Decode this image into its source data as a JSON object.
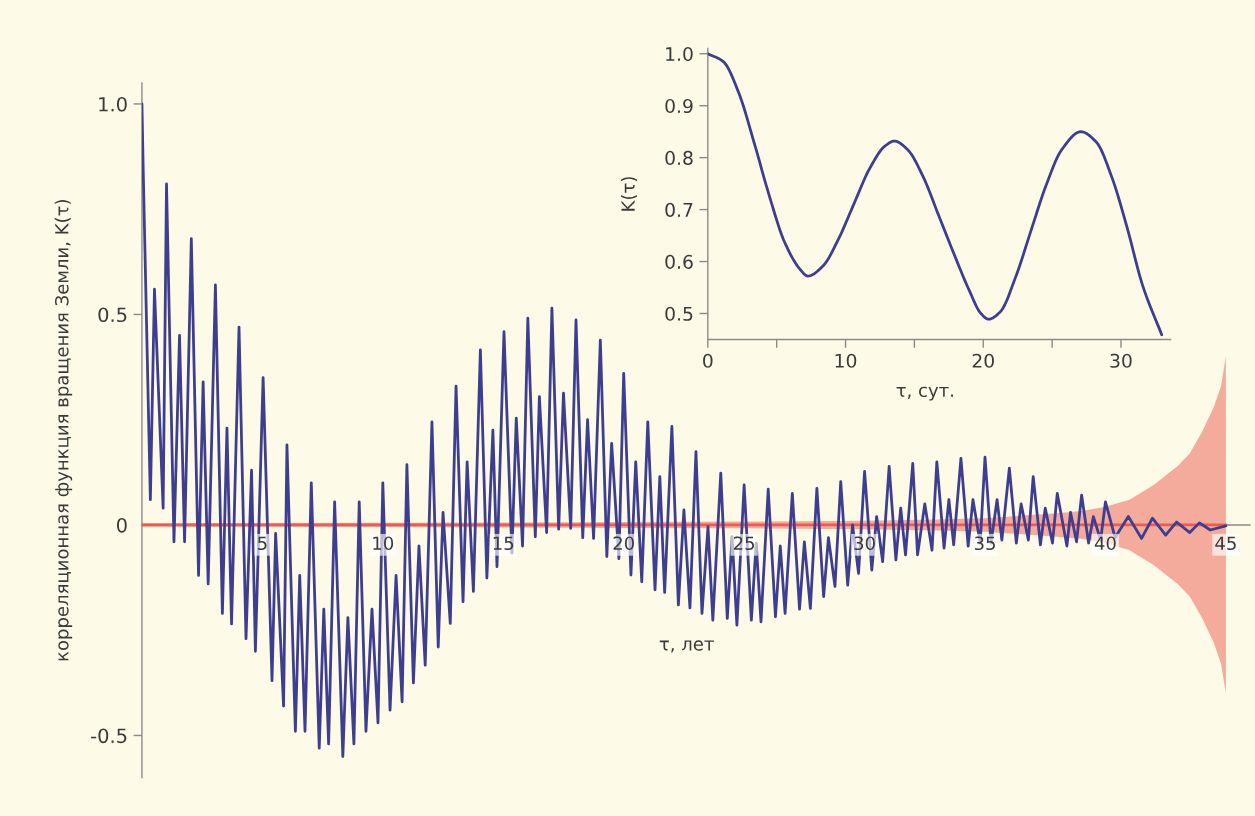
{
  "chart_data": [
    {
      "type": "line",
      "xlabel": "τ, лет",
      "ylabel": "корреляционная функция вращения Земли, K(τ)",
      "xlim": [
        0,
        46
      ],
      "ylim": [
        -0.6,
        1.05
      ],
      "xticks": [
        5,
        10,
        15,
        20,
        25,
        30,
        35,
        40,
        45
      ],
      "yticks": [
        -0.5,
        0,
        0.5,
        {
          "value": 1,
          "label": "1.0"
        }
      ],
      "grid": false,
      "series": [
        {
          "color": "#ec5c50",
          "x": [
            0,
            10,
            20,
            25,
            30,
            33,
            35,
            37,
            38,
            39,
            40,
            41,
            42,
            43,
            43.5,
            44,
            44.5,
            44.8,
            45
          ],
          "values": [
            0,
            0,
            0,
            0,
            0,
            0,
            0,
            0,
            0,
            0,
            0,
            0,
            0,
            0,
            0,
            0,
            0,
            0,
            0
          ],
          "lower": [
            -0.004,
            -0.005,
            -0.007,
            -0.008,
            -0.01,
            -0.013,
            -0.016,
            -0.024,
            -0.028,
            -0.033,
            -0.043,
            -0.06,
            -0.095,
            -0.14,
            -0.17,
            -0.22,
            -0.28,
            -0.33,
            -0.4
          ],
          "upper": [
            0.004,
            0.005,
            0.007,
            0.008,
            0.01,
            0.013,
            0.016,
            0.024,
            0.028,
            0.033,
            0.043,
            0.06,
            0.095,
            0.14,
            0.17,
            0.22,
            0.28,
            0.33,
            0.4
          ]
        },
        {
          "color": "#3d3d91",
          "x": [
            0,
            0.05,
            0.35,
            0.52,
            0.88,
            1.02,
            1.33,
            1.56,
            1.77,
            2.05,
            2.35,
            2.54,
            2.75,
            3.05,
            3.34,
            3.53,
            3.72,
            4.03,
            4.32,
            4.55,
            4.71,
            5.03,
            5.4,
            5.55,
            5.88,
            6.02,
            6.37,
            6.55,
            6.77,
            7.03,
            7.36,
            7.55,
            7.75,
            8.0,
            8.34,
            8.55,
            8.8,
            9.02,
            9.3,
            9.55,
            9.8,
            10.0,
            10.3,
            10.55,
            10.8,
            11.0,
            11.27,
            11.5,
            11.76,
            12.04,
            12.3,
            12.5,
            12.8,
            13.04,
            13.33,
            13.5,
            13.76,
            14.05,
            14.32,
            14.57,
            14.74,
            15.03,
            15.36,
            15.54,
            15.8,
            16.02,
            16.33,
            16.5,
            16.8,
            17.02,
            17.3,
            17.5,
            17.8,
            18.02,
            18.3,
            18.5,
            18.75,
            19.03,
            19.3,
            19.5,
            19.8,
            20.0,
            20.3,
            20.5,
            20.75,
            21.0,
            21.3,
            21.5,
            21.7,
            22.0,
            22.27,
            22.5,
            22.75,
            23.0,
            23.25,
            23.5,
            23.7,
            24.03,
            24.3,
            24.5,
            24.7,
            25.0,
            25.3,
            25.5,
            25.7,
            26.0,
            26.3,
            26.5,
            26.7,
            27.0,
            27.3,
            27.5,
            27.75,
            28.02,
            28.3,
            28.5,
            28.77,
            29.01,
            29.3,
            29.5,
            29.75,
            30.0,
            30.3,
            30.5,
            30.75,
            31.02,
            31.3,
            31.5,
            31.7,
            32.0,
            32.2,
            32.5,
            32.8,
            33.0,
            33.3,
            33.5,
            33.7,
            34.0,
            34.3,
            34.5,
            34.8,
            35.0,
            35.25,
            35.5,
            35.7,
            36.01,
            36.3,
            36.5,
            36.8,
            37.0,
            37.3,
            37.5,
            37.8,
            38.0,
            38.4,
            38.55,
            38.8,
            39.01,
            39.3,
            39.5,
            39.8,
            40.0,
            40.4,
            40.95,
            41.5,
            41.95,
            42.5,
            42.95,
            43.5,
            43.9,
            44.35,
            45.0
          ],
          "values": [
            1.0,
            0.85,
            0.06,
            0.56,
            0.04,
            0.81,
            -0.04,
            0.45,
            -0.04,
            0.68,
            -0.12,
            0.34,
            -0.14,
            0.57,
            -0.21,
            0.23,
            -0.235,
            0.47,
            -0.27,
            0.13,
            -0.3,
            0.35,
            -0.37,
            -0.02,
            -0.43,
            0.19,
            -0.49,
            -0.12,
            -0.49,
            0.1,
            -0.53,
            -0.2,
            -0.52,
            0.055,
            -0.55,
            -0.22,
            -0.52,
            0.055,
            -0.49,
            -0.2,
            -0.47,
            0.1,
            -0.44,
            -0.12,
            -0.42,
            0.143,
            -0.375,
            -0.05,
            -0.333,
            0.245,
            -0.29,
            0.03,
            -0.234,
            0.33,
            -0.182,
            0.15,
            -0.158,
            0.416,
            -0.126,
            0.225,
            -0.099,
            0.459,
            -0.067,
            0.254,
            -0.05,
            0.491,
            -0.028,
            0.305,
            -0.018,
            0.515,
            -0.01,
            0.313,
            -0.008,
            0.487,
            -0.03,
            0.25,
            -0.032,
            0.439,
            -0.075,
            0.194,
            -0.08,
            0.36,
            -0.119,
            0.15,
            -0.135,
            0.245,
            -0.154,
            0.115,
            -0.16,
            0.234,
            -0.19,
            0.036,
            -0.197,
            0.174,
            -0.21,
            -0.004,
            -0.226,
            0.123,
            -0.222,
            -0.028,
            -0.238,
            0.095,
            -0.226,
            -0.043,
            -0.23,
            0.085,
            -0.218,
            -0.05,
            -0.21,
            0.075,
            -0.2,
            -0.04,
            -0.198,
            0.087,
            -0.17,
            -0.03,
            -0.146,
            0.103,
            -0.143,
            0.0,
            -0.115,
            0.127,
            -0.107,
            0.02,
            -0.087,
            0.139,
            -0.083,
            0.04,
            -0.071,
            0.146,
            -0.071,
            0.05,
            -0.06,
            0.15,
            -0.055,
            0.06,
            -0.047,
            0.158,
            -0.05,
            0.06,
            -0.043,
            0.161,
            -0.043,
            0.06,
            -0.036,
            0.135,
            -0.043,
            0.05,
            -0.036,
            0.115,
            -0.047,
            0.04,
            -0.043,
            0.075,
            -0.05,
            0.03,
            -0.04,
            0.071,
            -0.043,
            0.02,
            -0.036,
            0.055,
            -0.03,
            0.02,
            -0.032,
            0.016,
            -0.024,
            0.007,
            -0.018,
            0.005,
            -0.012,
            -0.002
          ]
        }
      ]
    },
    {
      "type": "line",
      "xlabel": "τ, сут.",
      "ylabel": "K(τ)",
      "xlim": [
        0,
        33.6
      ],
      "ylim": [
        0.45,
        1.01
      ],
      "xticks": [
        0,
        {
          "value": 5,
          "label": null
        },
        10,
        {
          "value": 15,
          "label": null
        },
        20,
        {
          "value": 25,
          "label": null
        },
        30
      ],
      "yticks": [
        0.5,
        0.6,
        0.7,
        0.8,
        0.9,
        {
          "value": 1,
          "label": "1.0"
        }
      ],
      "grid": false,
      "series": [
        {
          "color": "#3d3d91",
          "x": [
            0,
            1.12,
            2.23,
            3.35,
            4.47,
            5.58,
            6.7,
            7.26,
            8.38,
            9.5,
            10.61,
            11.73,
            12.85,
            13.54,
            14.52,
            15.64,
            16.76,
            17.87,
            18.99,
            19.83,
            20.39,
            21.23,
            22.35,
            23.46,
            24.58,
            25.69,
            27.09,
            28.21,
            29.33,
            30.44,
            31.56,
            32.96
          ],
          "values": [
            1.0,
            0.985,
            0.926,
            0.83,
            0.726,
            0.637,
            0.585,
            0.572,
            0.592,
            0.644,
            0.711,
            0.778,
            0.822,
            0.832,
            0.815,
            0.763,
            0.689,
            0.615,
            0.544,
            0.5,
            0.489,
            0.503,
            0.57,
            0.659,
            0.748,
            0.815,
            0.85,
            0.83,
            0.763,
            0.666,
            0.555,
            0.459
          ]
        }
      ]
    }
  ]
}
